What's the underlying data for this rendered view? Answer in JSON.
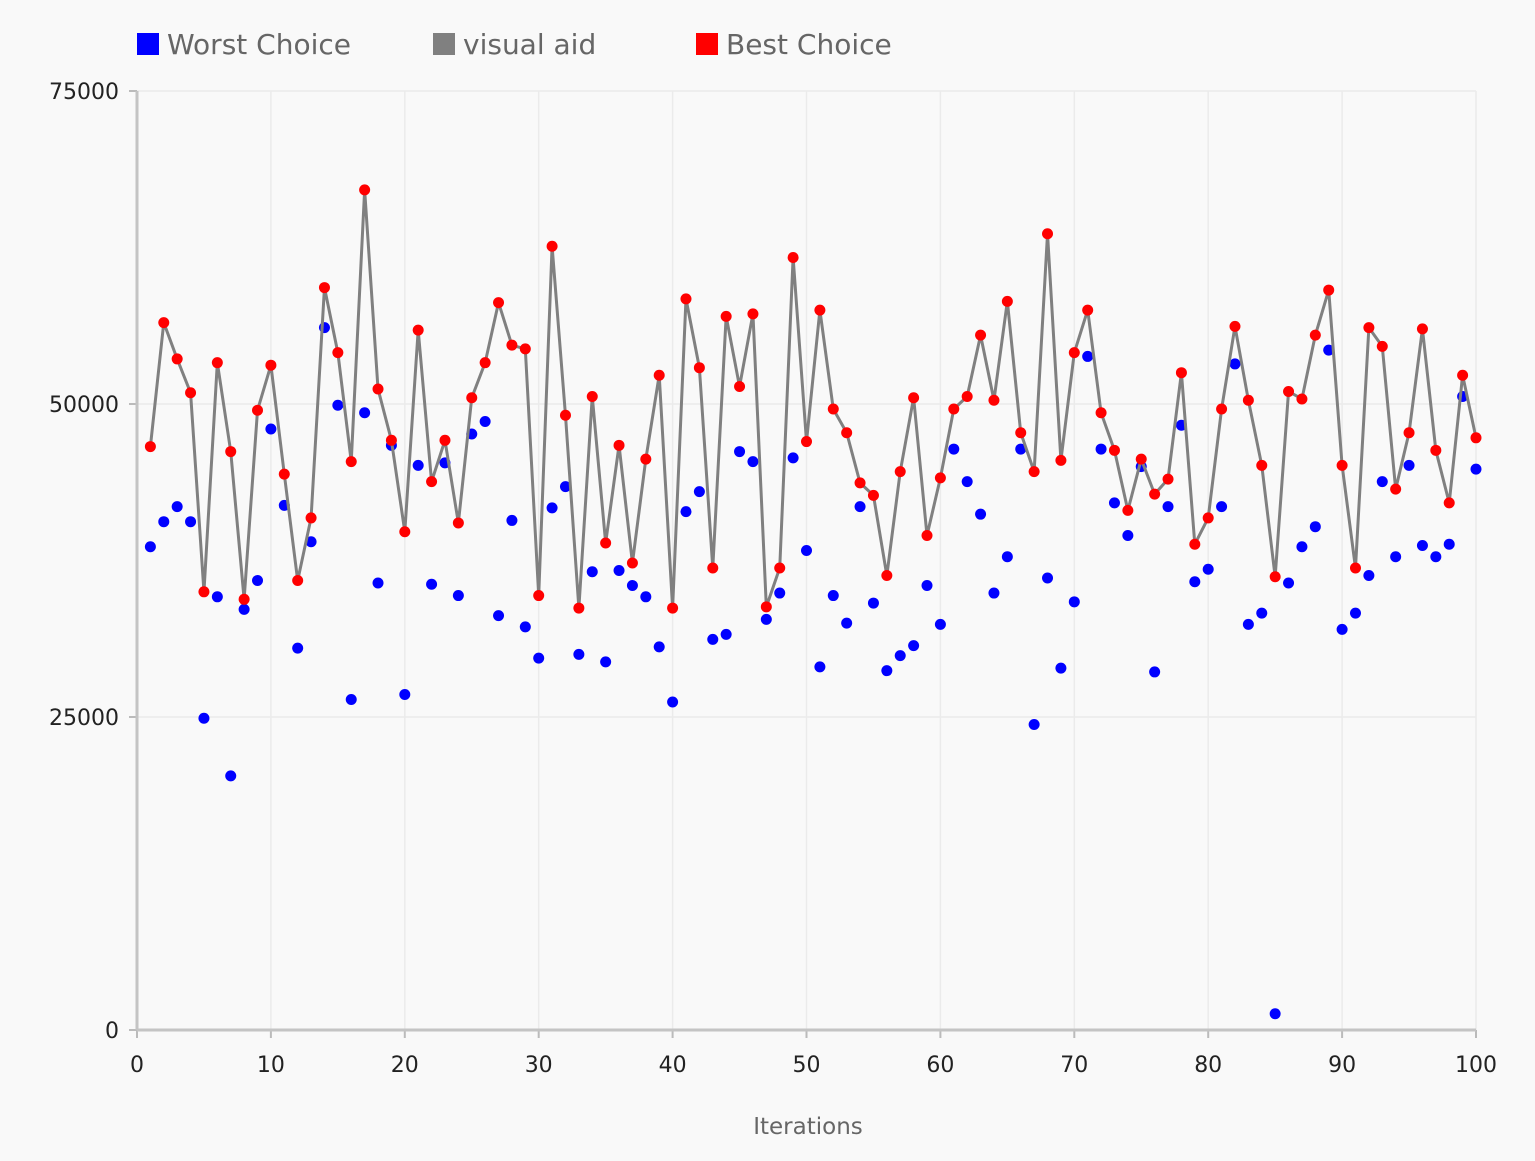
{
  "chart_data": {
    "type": "line",
    "title": "",
    "xlabel": "Iterations",
    "ylabel": "",
    "xlim": [
      0,
      100
    ],
    "ylim": [
      0,
      75000
    ],
    "x_ticks": [
      "0",
      "10",
      "20",
      "30",
      "40",
      "50",
      "60",
      "70",
      "80",
      "90",
      "100"
    ],
    "y_ticks": [
      "0",
      "25000",
      "50000",
      "75000"
    ],
    "grid": true,
    "legend_position": "top-left",
    "x": [
      1,
      2,
      3,
      4,
      5,
      6,
      7,
      8,
      9,
      10,
      11,
      12,
      13,
      14,
      15,
      16,
      17,
      18,
      19,
      20,
      21,
      22,
      23,
      24,
      25,
      26,
      27,
      28,
      29,
      30,
      31,
      32,
      33,
      34,
      35,
      36,
      37,
      38,
      39,
      40,
      41,
      42,
      43,
      44,
      45,
      46,
      47,
      48,
      49,
      50,
      51,
      52,
      53,
      54,
      55,
      56,
      57,
      58,
      59,
      60,
      61,
      62,
      63,
      64,
      65,
      66,
      67,
      68,
      69,
      70,
      71,
      72,
      73,
      74,
      75,
      76,
      77,
      78,
      79,
      80,
      81,
      82,
      83,
      84,
      85,
      86,
      87,
      88,
      89,
      90,
      91,
      92,
      93,
      94,
      95,
      96,
      97,
      98,
      99,
      100
    ],
    "series": [
      {
        "name": "Worst Choice",
        "color": "#0000ff",
        "style": "points",
        "values": [
          38600,
          40600,
          41800,
          40600,
          24900,
          34600,
          20300,
          33600,
          35900,
          48000,
          41900,
          30500,
          39000,
          56100,
          49900,
          26400,
          49300,
          35700,
          46700,
          26800,
          45100,
          35600,
          45300,
          34700,
          47600,
          48600,
          33100,
          40700,
          32200,
          29700,
          41700,
          43400,
          30000,
          36600,
          29400,
          36700,
          35500,
          34600,
          30600,
          26200,
          41400,
          43000,
          31200,
          31600,
          46200,
          45400,
          32800,
          34900,
          45700,
          38300,
          29000,
          34700,
          32500,
          41800,
          34100,
          28700,
          29900,
          30700,
          35500,
          32400,
          46400,
          43800,
          41200,
          34900,
          37800,
          46400,
          24400,
          36100,
          28900,
          34200,
          53800,
          46400,
          42100,
          39500,
          45000,
          28600,
          41800,
          48300,
          35800,
          36800,
          41800,
          53200,
          32400,
          33300,
          1300,
          35700,
          38600,
          40200,
          54300,
          32000,
          33300,
          36300,
          43800,
          37800,
          45100,
          38700,
          37800,
          38800,
          50600,
          44800
        ]
      },
      {
        "name": "visual aid",
        "color": "#808080",
        "style": "line",
        "values": [
          46600,
          56500,
          53600,
          50900,
          35000,
          53300,
          46200,
          34400,
          49500,
          53100,
          44400,
          35900,
          40900,
          59300,
          54100,
          45400,
          67100,
          51200,
          47100,
          39800,
          55900,
          43800,
          47100,
          40500,
          50500,
          53300,
          58100,
          54700,
          54400,
          34700,
          62600,
          49100,
          33700,
          50600,
          38900,
          46700,
          37300,
          45600,
          52300,
          33700,
          58400,
          52900,
          36900,
          57000,
          51400,
          57200,
          33800,
          36900,
          61700,
          47000,
          57500,
          49600,
          47700,
          43700,
          42700,
          36300,
          44600,
          50500,
          39500,
          44100,
          49600,
          50600,
          55500,
          50300,
          58200,
          47700,
          44600,
          63600,
          45500,
          54100,
          57500,
          49300,
          46300,
          41500,
          45600,
          42800,
          44000,
          52500,
          38800,
          40900,
          49600,
          56200,
          50300,
          45100,
          36200,
          51000,
          50400,
          55500,
          59100,
          45100,
          36900,
          56100,
          54600,
          43200,
          47700,
          56000,
          46300,
          42100,
          52300,
          47300
        ]
      },
      {
        "name": "Best Choice",
        "color": "#ff0000",
        "style": "points",
        "values": [
          46600,
          56500,
          53600,
          50900,
          35000,
          53300,
          46200,
          34400,
          49500,
          53100,
          44400,
          35900,
          40900,
          59300,
          54100,
          45400,
          67100,
          51200,
          47100,
          39800,
          55900,
          43800,
          47100,
          40500,
          50500,
          53300,
          58100,
          54700,
          54400,
          34700,
          62600,
          49100,
          33700,
          50600,
          38900,
          46700,
          37300,
          45600,
          52300,
          33700,
          58400,
          52900,
          36900,
          57000,
          51400,
          57200,
          33800,
          36900,
          61700,
          47000,
          57500,
          49600,
          47700,
          43700,
          42700,
          36300,
          44600,
          50500,
          39500,
          44100,
          49600,
          50600,
          55500,
          50300,
          58200,
          47700,
          44600,
          63600,
          45500,
          54100,
          57500,
          49300,
          46300,
          41500,
          45600,
          42800,
          44000,
          52500,
          38800,
          40900,
          49600,
          56200,
          50300,
          45100,
          36200,
          51000,
          50400,
          55500,
          59100,
          45100,
          36900,
          56100,
          54600,
          43200,
          47700,
          56000,
          46300,
          42100,
          52300,
          47300
        ]
      }
    ]
  }
}
